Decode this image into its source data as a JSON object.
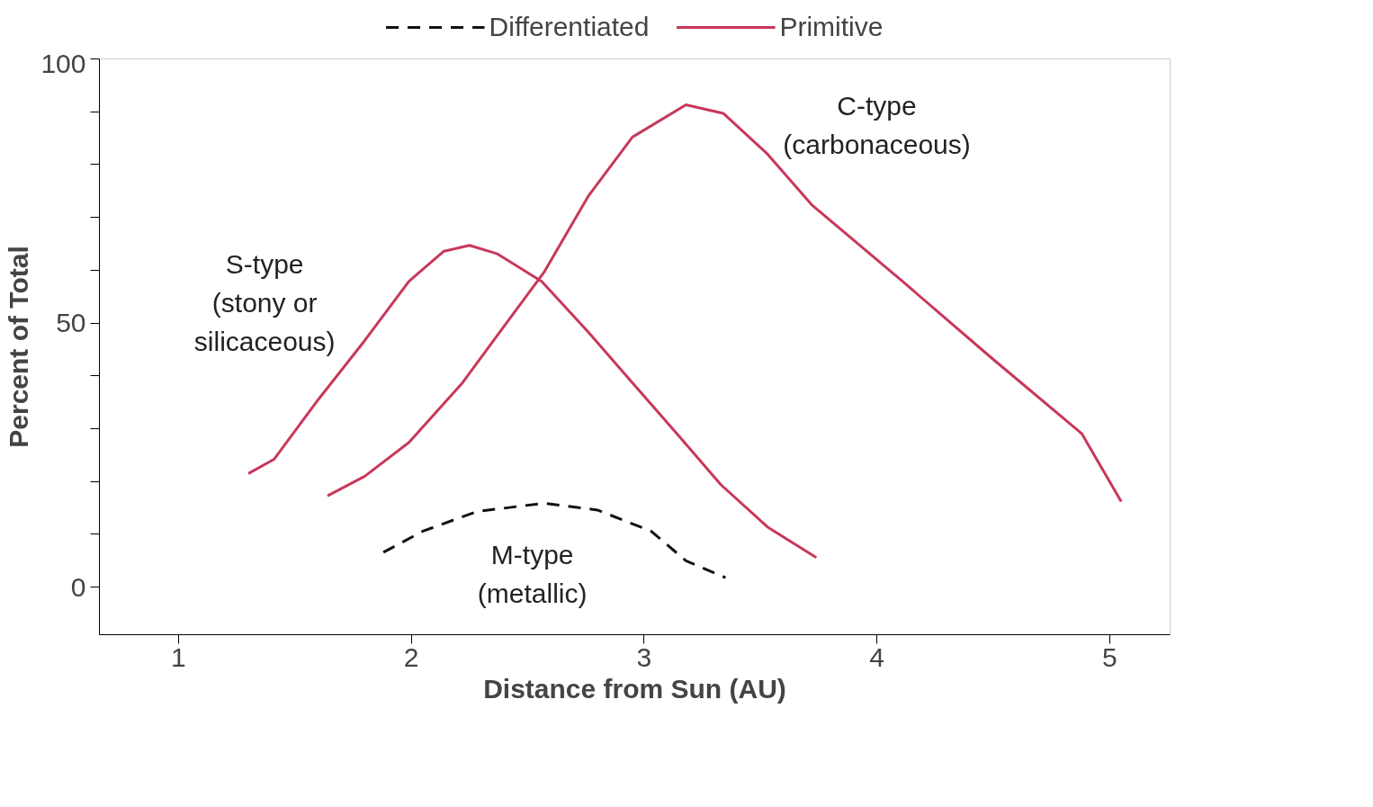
{
  "chart_data": {
    "type": "line",
    "xlabel": "Distance from Sun (AU)",
    "ylabel": "Percent of Total",
    "xlim": [
      0.66,
      5.26
    ],
    "ylim": [
      -9,
      100
    ],
    "xticks": [
      1,
      2,
      3,
      4,
      5
    ],
    "yticks": [
      0,
      {
        "value": 10,
        "label": null
      },
      {
        "value": 20,
        "label": null
      },
      {
        "value": 30,
        "label": null
      },
      {
        "value": 40,
        "label": null
      },
      50,
      {
        "value": 60,
        "label": null
      },
      {
        "value": 70,
        "label": null
      },
      {
        "value": 80,
        "label": null
      },
      {
        "value": 90,
        "label": null
      },
      100
    ],
    "grid": false,
    "legend": "top",
    "marker": "none",
    "series": [
      {
        "name": "Differentiated",
        "color": "#111111",
        "line_style": "dashed",
        "x": [
          1.88,
          2.05,
          2.28,
          2.57,
          2.8,
          3.03,
          3.18,
          3.35
        ],
        "values": [
          6.6,
          10.6,
          14.3,
          15.9,
          14.6,
          10.6,
          5.0,
          1.8
        ]
      },
      {
        "name": "Primitive",
        "color": "#c8385a",
        "line_style": "solid",
        "x": [
          1.3,
          1.41,
          1.6,
          1.8,
          1.99,
          2.14,
          2.25,
          2.37,
          2.56,
          2.76,
          2.95,
          3.14,
          3.33,
          3.53,
          3.74
        ],
        "values": [
          21.5,
          24.2,
          35.5,
          46.7,
          57.9,
          63.6,
          64.7,
          63.1,
          57.9,
          48.3,
          38.7,
          29.1,
          19.4,
          11.4,
          5.6
        ]
      },
      {
        "color": "#c8385a",
        "line_style": "solid",
        "x": [
          1.64,
          1.8,
          1.99,
          2.22,
          2.38,
          2.57,
          2.76,
          2.95,
          3.18,
          3.34,
          3.53,
          3.72,
          4.11,
          4.49,
          4.88,
          5.05
        ],
        "values": [
          17.3,
          21.0,
          27.4,
          38.7,
          48.3,
          59.6,
          74.0,
          85.2,
          91.3,
          89.7,
          82.0,
          72.4,
          57.9,
          43.5,
          29.1,
          16.2
        ]
      }
    ],
    "annotations": [
      "S-type\n(stony or\nsilicaceous)",
      "C-type\n(carbonaceous)",
      "M-type\n(metallic)"
    ]
  }
}
